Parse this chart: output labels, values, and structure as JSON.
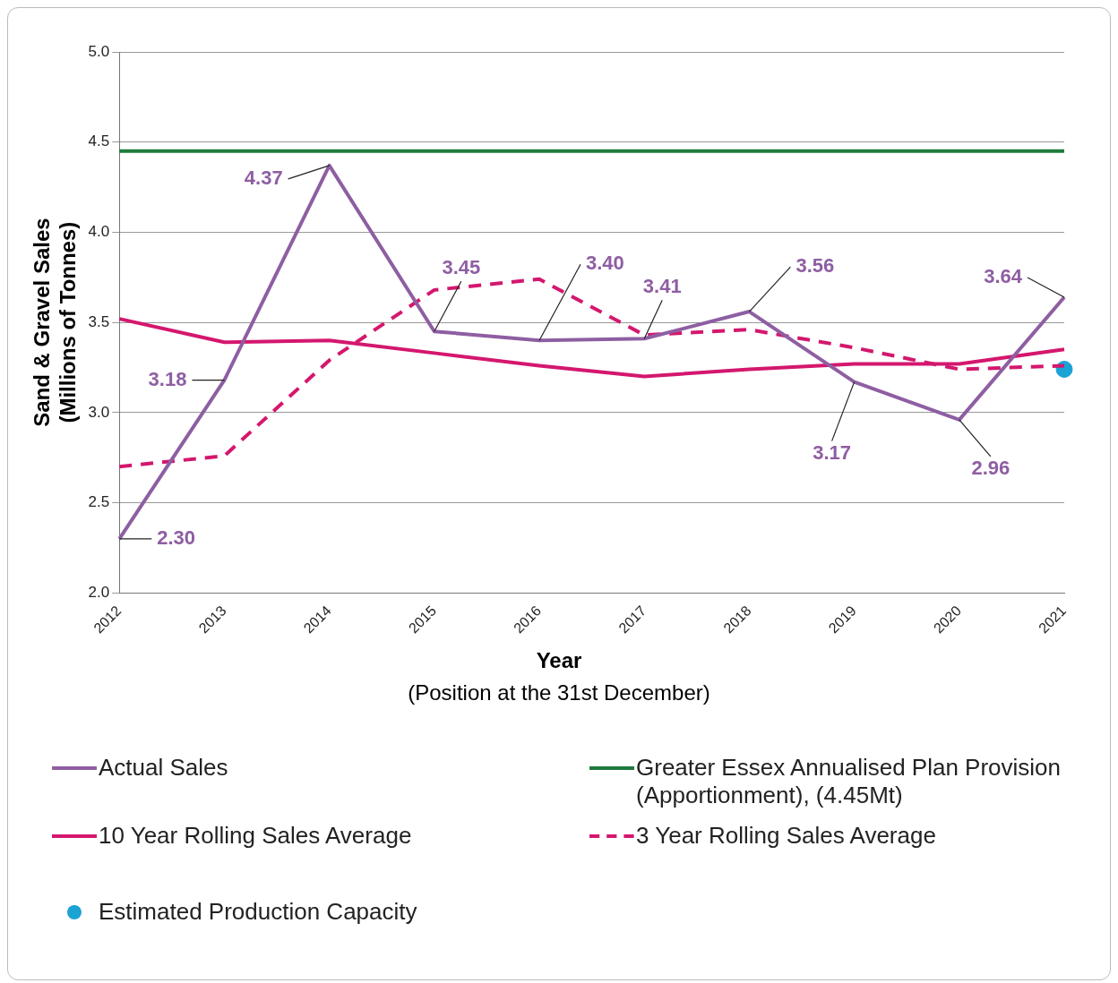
{
  "chart_data": {
    "type": "line",
    "ylabel": "Sand & Gravel Sales\n(Millions of Tonnes)",
    "xlabel": "Year",
    "annotations": [
      "(Position at the 31st December)"
    ],
    "categories": [
      "2012",
      "2013",
      "2014",
      "2015",
      "2016",
      "2017",
      "2018",
      "2019",
      "2020",
      "2021"
    ],
    "series": [
      {
        "name": "Actual Sales",
        "color": "#8e5ea2",
        "values": [
          2.3,
          3.18,
          4.37,
          3.45,
          3.4,
          3.41,
          3.56,
          3.17,
          2.96,
          3.64
        ],
        "value_labels": [
          "2.30",
          "3.18",
          "4.37",
          "3.45",
          "3.40",
          "3.41",
          "3.56",
          "3.17",
          "2.96",
          "3.64"
        ]
      },
      {
        "name": "Greater Essex Annualised Plan Provision (Apportionment),  (4.45Mt)",
        "color": "#1e7b3c",
        "values": [
          4.45,
          4.45,
          4.45,
          4.45,
          4.45,
          4.45,
          4.45,
          4.45,
          4.45,
          4.45
        ]
      },
      {
        "name": "10 Year Rolling Sales Average",
        "color": "#d4176e",
        "values": [
          3.52,
          3.39,
          3.4,
          3.33,
          3.26,
          3.2,
          3.24,
          3.27,
          3.27,
          3.35
        ]
      },
      {
        "name": "3 Year Rolling Sales Average",
        "color": "#d4176e",
        "line_style": "dashed",
        "values": [
          2.7,
          2.76,
          3.29,
          3.68,
          3.74,
          3.43,
          3.46,
          3.36,
          3.24,
          3.26
        ]
      },
      {
        "name": "Estimated Production Capacity",
        "type": "scatter",
        "marker": "circle",
        "color": "#1aa3d4",
        "values": [
          null,
          null,
          null,
          null,
          null,
          null,
          null,
          null,
          null,
          3.24
        ]
      }
    ],
    "ylim": [
      2.0,
      5.0
    ],
    "yticks": [
      {
        "value": 2.0,
        "label": "2.0"
      },
      {
        "value": 2.5,
        "label": "2.5"
      },
      {
        "value": 3.0,
        "label": "3.0"
      },
      {
        "value": 3.5,
        "label": "3.5"
      },
      {
        "value": 4.0,
        "label": "4.0"
      },
      {
        "value": 4.5,
        "label": "4.5"
      },
      {
        "value": 5.0,
        "label": "5.0"
      }
    ],
    "grid": "y",
    "legend": "bottom",
    "marker": "none"
  }
}
